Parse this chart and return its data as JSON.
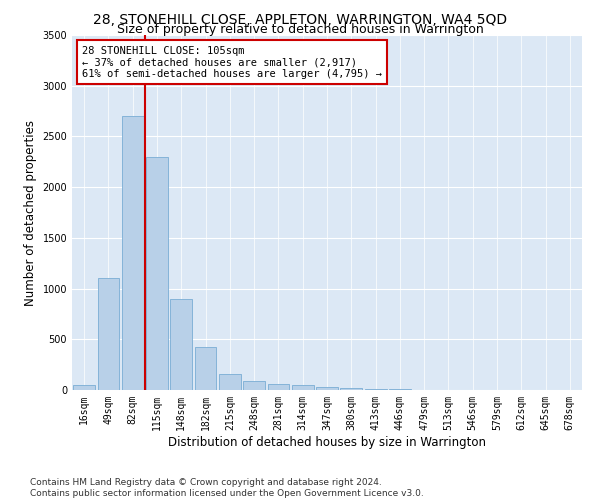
{
  "title": "28, STONEHILL CLOSE, APPLETON, WARRINGTON, WA4 5QD",
  "subtitle": "Size of property relative to detached houses in Warrington",
  "xlabel": "Distribution of detached houses by size in Warrington",
  "ylabel": "Number of detached properties",
  "categories": [
    "16sqm",
    "49sqm",
    "82sqm",
    "115sqm",
    "148sqm",
    "182sqm",
    "215sqm",
    "248sqm",
    "281sqm",
    "314sqm",
    "347sqm",
    "380sqm",
    "413sqm",
    "446sqm",
    "479sqm",
    "513sqm",
    "546sqm",
    "579sqm",
    "612sqm",
    "645sqm",
    "678sqm"
  ],
  "values": [
    50,
    1100,
    2700,
    2300,
    900,
    420,
    160,
    90,
    60,
    50,
    30,
    15,
    10,
    6,
    3,
    2,
    1,
    1,
    1,
    0,
    0
  ],
  "bar_color": "#b8d0e8",
  "bar_edge_color": "#7aadd4",
  "vline_x_index": 2,
  "vline_color": "#cc0000",
  "annotation_text": "28 STONEHILL CLOSE: 105sqm\n← 37% of detached houses are smaller (2,917)\n61% of semi-detached houses are larger (4,795) →",
  "annotation_box_color": "#ffffff",
  "annotation_box_edge": "#cc0000",
  "ylim": [
    0,
    3500
  ],
  "yticks": [
    0,
    500,
    1000,
    1500,
    2000,
    2500,
    3000,
    3500
  ],
  "footer": "Contains HM Land Registry data © Crown copyright and database right 2024.\nContains public sector information licensed under the Open Government Licence v3.0.",
  "bg_color": "#dce8f5",
  "title_fontsize": 10,
  "subtitle_fontsize": 9,
  "axis_label_fontsize": 8.5,
  "tick_fontsize": 7,
  "footer_fontsize": 6.5,
  "annotation_fontsize": 7.5
}
